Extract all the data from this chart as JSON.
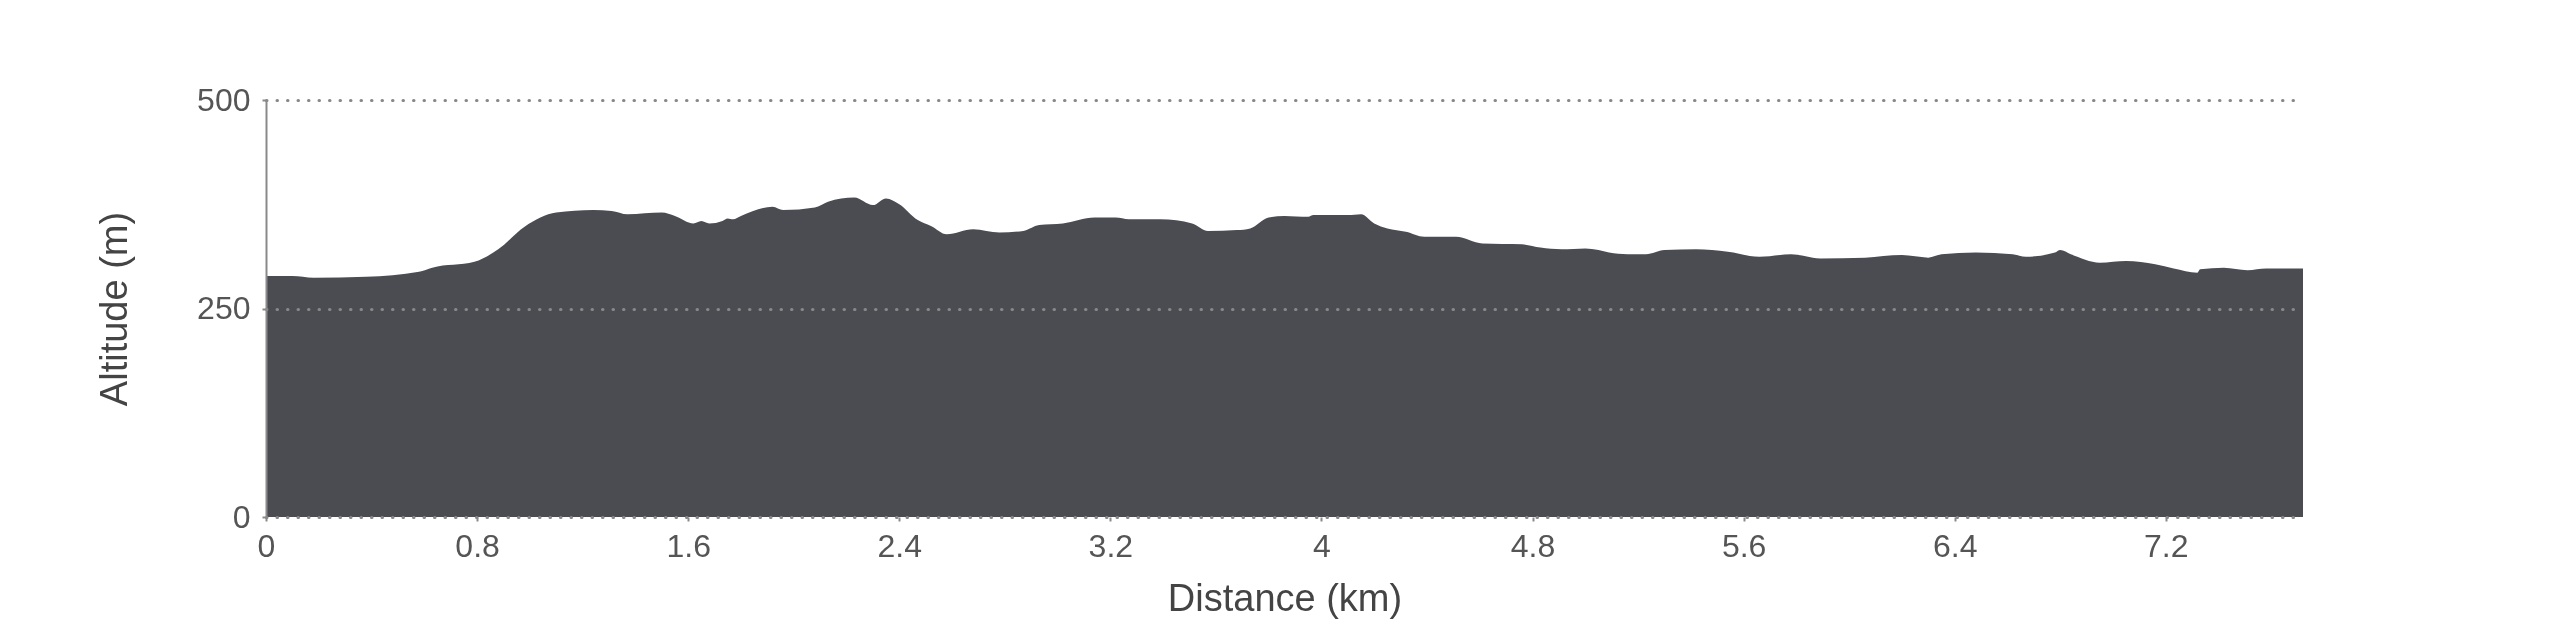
{
  "chart_data": {
    "type": "area",
    "xlabel": "Distance (km)",
    "ylabel": "Altitude (m)",
    "color": "#4a4c51",
    "grid": "y",
    "xlim": [
      0,
      7.72
    ],
    "ylim": [
      0,
      500
    ],
    "xticks": [
      0,
      0.8,
      1.6,
      2.4,
      3.2,
      4,
      4.8,
      5.6,
      6.4,
      7.2
    ],
    "yticks": [
      0,
      250,
      500
    ],
    "x": [
      0,
      0.1,
      0.18,
      0.38,
      0.58,
      0.63,
      0.79,
      0.88,
      0.98,
      1.1,
      1.24,
      1.31,
      1.37,
      1.5,
      1.55,
      1.62,
      1.65,
      1.68,
      1.73,
      1.75,
      1.77,
      1.8,
      1.92,
      1.96,
      2.08,
      2.13,
      2.23,
      2.3,
      2.35,
      2.4,
      2.47,
      2.52,
      2.58,
      2.68,
      2.78,
      2.87,
      2.93,
      3.02,
      3.14,
      3.22,
      3.27,
      3.39,
      3.51,
      3.57,
      3.68,
      3.73,
      3.8,
      3.86,
      3.95,
      3.97,
      4.1,
      4.15,
      4.2,
      4.25,
      4.32,
      4.39,
      4.51,
      4.61,
      4.76,
      4.83,
      4.91,
      5.0,
      5.05,
      5.09,
      5.16,
      5.23,
      5.3,
      5.42,
      5.54,
      5.66,
      5.78,
      5.89,
      6.06,
      6.2,
      6.3,
      6.35,
      6.48,
      6.62,
      6.67,
      6.78,
      6.8,
      6.84,
      6.95,
      7.05,
      7.16,
      7.23,
      7.32,
      7.33,
      7.42,
      7.51,
      7.58,
      7.68,
      7.72
    ],
    "values": [
      289,
      289,
      287,
      288,
      294,
      299,
      306,
      321,
      348,
      365,
      368,
      367,
      363,
      365,
      361,
      352,
      355,
      352,
      355,
      358,
      357,
      361,
      372,
      368,
      371,
      378,
      383,
      374,
      382,
      375,
      356,
      349,
      339,
      345,
      341,
      343,
      350,
      352,
      359,
      359,
      357,
      357,
      352,
      343,
      344,
      346,
      359,
      361,
      360,
      362,
      362,
      363,
      352,
      346,
      342,
      336,
      336,
      328,
      327,
      323,
      321,
      322,
      320,
      317,
      315,
      315,
      320,
      321,
      318,
      312,
      315,
      310,
      311,
      314,
      311,
      315,
      317,
      315,
      312,
      317,
      320,
      315,
      305,
      307,
      303,
      298,
      293,
      297,
      299,
      296,
      298,
      298,
      298
    ]
  }
}
